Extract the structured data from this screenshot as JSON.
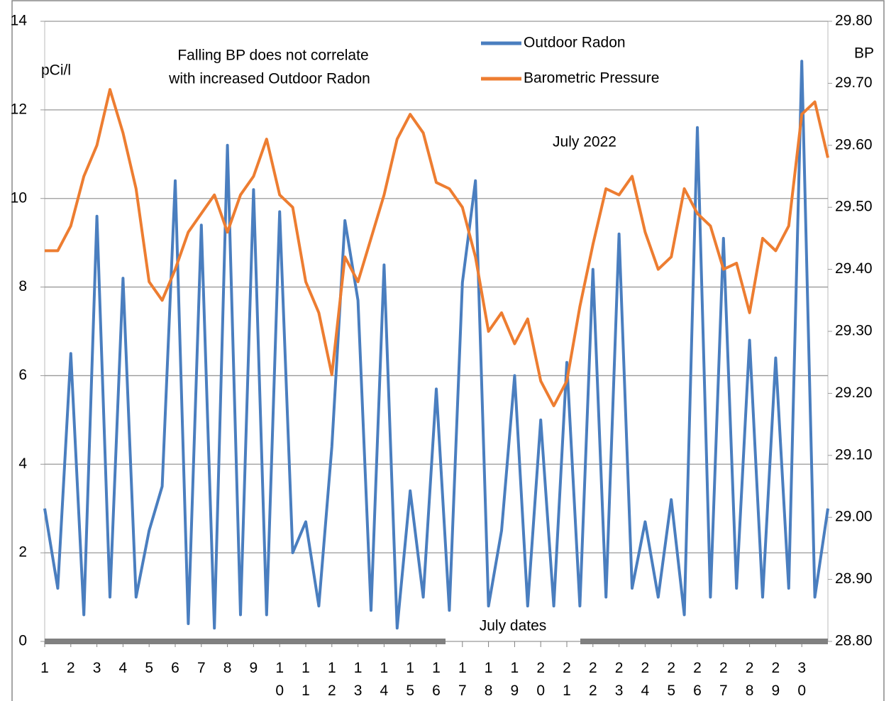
{
  "chart_data": {
    "type": "line",
    "ylabel": "pCi/l",
    "y2label": "BP",
    "xlabel": "July dates",
    "annotations": [
      "Falling BP does not correlate",
      "with increased Outdoor Radon",
      "July 2022"
    ],
    "x": [
      1,
      1.5,
      2,
      2.5,
      3,
      3.5,
      4,
      4.5,
      5,
      5.5,
      6,
      6.5,
      7,
      7.5,
      8,
      8.5,
      9,
      9.5,
      10,
      10.5,
      11,
      11.5,
      12,
      12.5,
      13,
      13.5,
      14,
      14.5,
      15,
      15.5,
      16,
      16.5,
      17,
      17.5,
      18,
      18.5,
      19,
      19.5,
      20,
      20.5,
      21,
      21.5,
      22,
      22.5,
      23,
      23.5,
      24,
      24.5,
      25,
      25.5,
      26,
      26.5,
      27,
      27.5,
      28,
      28.5,
      29,
      29.5,
      30,
      30.5,
      31
    ],
    "xlim": [
      1,
      31
    ],
    "xticks": [
      1,
      2,
      3,
      4,
      5,
      6,
      7,
      8,
      9,
      10,
      11,
      12,
      13,
      14,
      15,
      16,
      17,
      18,
      19,
      20,
      21,
      22,
      23,
      24,
      25,
      26,
      27,
      28,
      29,
      30
    ],
    "ylim": [
      0,
      14
    ],
    "yticks": [
      0,
      2,
      4,
      6,
      8,
      10,
      12,
      14
    ],
    "y2lim": [
      28.8,
      29.8
    ],
    "y2ticks": [
      {
        "value": 28.8,
        "label": "28.80"
      },
      {
        "value": 28.9,
        "label": "28.90"
      },
      {
        "value": 29.0,
        "label": "29.00"
      },
      {
        "value": 29.1,
        "label": "29.10"
      },
      {
        "value": 29.2,
        "label": "29.20"
      },
      {
        "value": 29.3,
        "label": "29.30"
      },
      {
        "value": 29.4,
        "label": "29.40"
      },
      {
        "value": 29.5,
        "label": "29.50"
      },
      {
        "value": 29.6,
        "label": "29.60"
      },
      {
        "value": 29.7,
        "label": "29.70"
      },
      {
        "value": 29.8,
        "label": "29.80"
      }
    ],
    "grid": true,
    "legend": "top",
    "series": [
      {
        "name": "Outdoor Radon",
        "color": "#4a7ebf",
        "values": [
          3.0,
          1.2,
          6.5,
          0.6,
          9.6,
          1.0,
          8.2,
          1.0,
          2.5,
          3.5,
          10.4,
          0.4,
          9.4,
          0.3,
          11.2,
          0.6,
          10.2,
          0.6,
          9.7,
          2.0,
          2.7,
          0.8,
          4.4,
          9.5,
          7.7,
          0.7,
          8.5,
          0.3,
          3.4,
          1.0,
          5.7,
          0.7,
          8.1,
          10.4,
          0.8,
          2.5,
          6.0,
          0.8,
          5.0,
          0.8,
          6.3,
          0.8,
          8.4,
          1.0,
          9.2,
          1.2,
          2.7,
          1.0,
          3.2,
          0.6,
          11.6,
          1.0,
          9.1,
          1.2,
          6.8,
          1.0,
          6.4,
          1.2,
          13.1,
          1.0,
          3.0
        ]
      },
      {
        "name": "Barometric Pressure",
        "color": "#ed7d31",
        "axis": "y2",
        "values": [
          29.43,
          29.43,
          29.47,
          29.55,
          29.6,
          29.69,
          29.62,
          29.53,
          29.38,
          29.35,
          29.4,
          29.46,
          29.49,
          29.52,
          29.46,
          29.52,
          29.55,
          29.61,
          29.52,
          29.5,
          29.38,
          29.33,
          29.23,
          29.42,
          29.38,
          29.45,
          29.52,
          29.61,
          29.65,
          29.62,
          29.54,
          29.53,
          29.5,
          29.42,
          29.3,
          29.33,
          29.28,
          29.32,
          29.22,
          29.18,
          29.22,
          29.34,
          29.44,
          29.53,
          29.52,
          29.55,
          29.46,
          29.4,
          29.42,
          29.53,
          29.49,
          29.47,
          29.4,
          29.41,
          29.33,
          29.45,
          29.43,
          29.47,
          29.65,
          29.67,
          29.58
        ]
      }
    ]
  }
}
